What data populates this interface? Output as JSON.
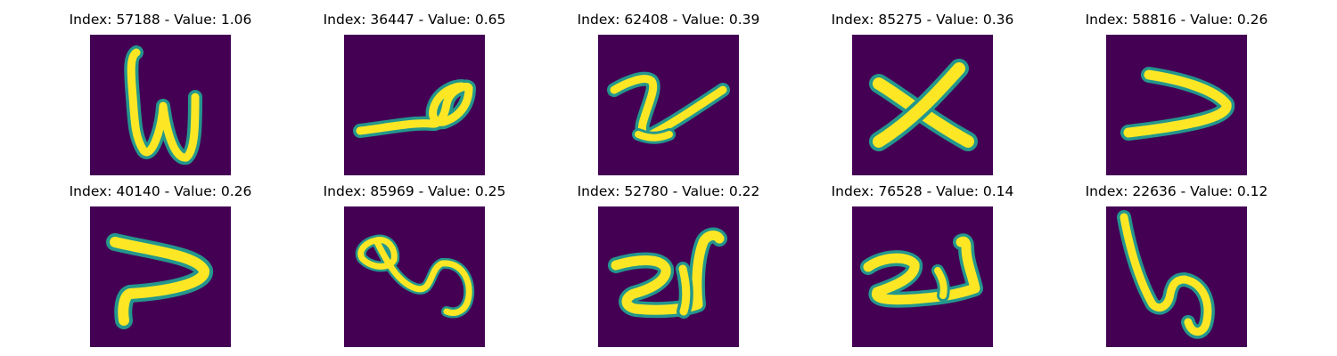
{
  "panels": [
    {
      "title": "Index: 57188 - Value: 1.06",
      "index": 57188,
      "value": 1.06
    },
    {
      "title": "Index: 36447 - Value: 0.65",
      "index": 36447,
      "value": 0.65
    },
    {
      "title": "Index: 62408 - Value: 0.39",
      "index": 62408,
      "value": 0.39
    },
    {
      "title": "Index: 85275 - Value: 0.36",
      "index": 85275,
      "value": 0.36
    },
    {
      "title": "Index: 58816 - Value: 0.26",
      "index": 58816,
      "value": 0.26
    },
    {
      "title": "Index: 40140 - Value: 0.26",
      "index": 40140,
      "value": 0.26
    },
    {
      "title": "Index: 85969 - Value: 0.25",
      "index": 85969,
      "value": 0.25
    },
    {
      "title": "Index: 52780 - Value: 0.22",
      "index": 52780,
      "value": 0.22
    },
    {
      "title": "Index: 76528 - Value: 0.14",
      "index": 76528,
      "value": 0.14
    },
    {
      "title": "Index: 22636 - Value: 0.12",
      "index": 22636,
      "value": 0.12
    }
  ],
  "colors": {
    "background": "#440154",
    "stroke_edge": "#24978d",
    "stroke_core": "#fde725"
  }
}
